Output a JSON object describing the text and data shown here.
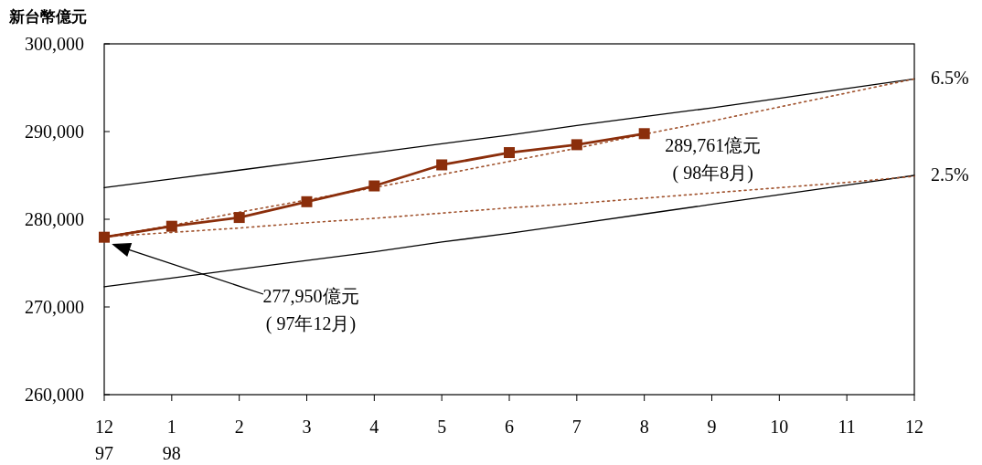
{
  "chart_data": {
    "type": "line",
    "ylabel": "新台幣億元",
    "categories": [
      "12\n97",
      "1\n98",
      "2",
      "3",
      "4",
      "5",
      "6",
      "7",
      "8",
      "9",
      "10",
      "11",
      "12"
    ],
    "ylim": [
      260000,
      300000
    ],
    "yticks": [
      {
        "value": 260000,
        "label": "260,000"
      },
      {
        "value": 270000,
        "label": "270,000"
      },
      {
        "value": 280000,
        "label": "280,000"
      },
      {
        "value": 290000,
        "label": "290,000"
      },
      {
        "value": 300000,
        "label": "300,000"
      }
    ],
    "grid": false,
    "legend": false,
    "series": [
      {
        "name": "6.5%",
        "color": "#000000",
        "line_style": "solid",
        "marker": "none",
        "values": [
          283600,
          284600,
          285600,
          286600,
          287600,
          288600,
          289600,
          290700,
          291700,
          292700,
          293800,
          294900,
          296000
        ]
      },
      {
        "name": "2.5%",
        "color": "#000000",
        "line_style": "solid",
        "marker": "none",
        "values": [
          272300,
          273300,
          274300,
          275300,
          276300,
          277400,
          278400,
          279500,
          280600,
          281700,
          282800,
          283900,
          285000
        ]
      },
      {
        "color": "#a0522d",
        "line_style": "dotted",
        "marker": "none",
        "values": [
          278000,
          279300,
          280800,
          282200,
          283600,
          285100,
          286600,
          288100,
          289700,
          291200,
          292800,
          294400,
          296000
        ]
      },
      {
        "color": "#a0522d",
        "line_style": "dotted",
        "marker": "none",
        "values": [
          278000,
          278500,
          279000,
          279600,
          280100,
          280700,
          281300,
          281800,
          282400,
          283000,
          283600,
          284200,
          284900
        ]
      },
      {
        "color": "#8b2e0b",
        "line_style": "solid",
        "marker": "square",
        "values": [
          277950,
          279200,
          280200,
          282000,
          283800,
          286200,
          287600,
          288500,
          289761,
          null,
          null,
          null,
          null
        ]
      }
    ],
    "annotations": [
      "277,950億元\n( 97年12月)",
      {
        "text": "289,761億元\n( 98年8月)",
        "x": "8",
        "y": 289761
      }
    ]
  }
}
